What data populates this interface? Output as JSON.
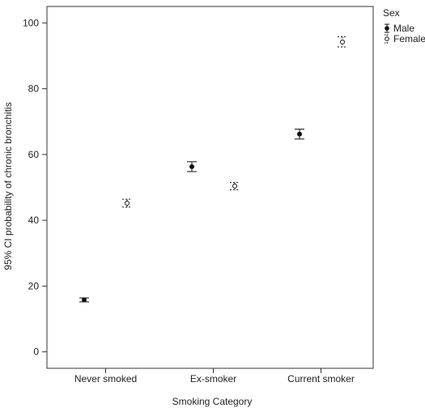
{
  "chart_data": {
    "type": "scatter",
    "subtype": "error-bar",
    "title": "",
    "xlabel": "Smoking Category",
    "ylabel": "95% CI probability of chronic bronchitis",
    "categories": [
      "Never smoked",
      "Ex-smoker",
      "Current smoker"
    ],
    "ylim": [
      -5,
      105
    ],
    "yticks": [
      0,
      20,
      40,
      60,
      80,
      100
    ],
    "grid": false,
    "legend": {
      "title": "Sex",
      "position": "top-right, outside plot"
    },
    "series": [
      {
        "name": "Male",
        "marker": "filled-circle",
        "line_style": "solid",
        "values": [
          15.8,
          56.3,
          66.2
        ],
        "lower": [
          15.2,
          54.8,
          64.7
        ],
        "upper": [
          16.4,
          57.8,
          67.7
        ]
      },
      {
        "name": "Female",
        "marker": "open-circle",
        "line_style": "dashed",
        "values": [
          45.2,
          50.4,
          94.2
        ],
        "lower": [
          44.0,
          49.3,
          92.7
        ],
        "upper": [
          46.4,
          51.5,
          95.8
        ]
      }
    ]
  }
}
